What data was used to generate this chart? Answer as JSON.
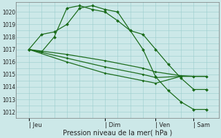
{
  "bg_color": "#cce8e8",
  "grid_color": "#99cccc",
  "line_color": "#1a6b1a",
  "ylabel_values": [
    1012,
    1013,
    1014,
    1015,
    1016,
    1017,
    1018,
    1019,
    1020
  ],
  "ylim": [
    1011.5,
    1020.8
  ],
  "xlabel": "Pression niveau de la mer( hPa )",
  "xtick_labels": [
    "| Jeu",
    "| Dim",
    "| Ven",
    "| Sam"
  ],
  "xtick_positions": [
    0,
    3,
    5,
    6.5
  ],
  "xlim": [
    -0.1,
    7.5
  ],
  "series1_x": [
    0,
    0.5,
    1.0,
    1.5,
    2.0,
    2.5,
    3.0,
    3.5,
    4.0,
    4.5,
    5.0,
    5.5,
    6.0,
    6.5,
    7.0
  ],
  "series1_y": [
    1017.0,
    1018.2,
    1018.4,
    1019.0,
    1020.3,
    1020.5,
    1020.2,
    1020.0,
    1018.5,
    1018.2,
    1017.0,
    1015.8,
    1014.7,
    1013.8,
    1013.8
  ],
  "series2_x": [
    0,
    0.5,
    1.0,
    1.5,
    2.0,
    2.5,
    3.0,
    3.5,
    4.0,
    4.5,
    5.0,
    5.5,
    6.0,
    6.5,
    7.0
  ],
  "series2_y": [
    1017.0,
    1016.8,
    1018.0,
    1020.3,
    1020.5,
    1020.2,
    1020.0,
    1019.3,
    1018.5,
    1017.0,
    1014.8,
    1013.7,
    1012.8,
    1012.2,
    1012.2
  ],
  "series3_x": [
    0,
    1.5,
    3.0,
    4.5,
    5.0,
    6.0,
    6.5,
    7.0
  ],
  "series3_y": [
    1017.0,
    1016.6,
    1016.1,
    1015.5,
    1015.2,
    1014.9,
    1014.85,
    1014.85
  ],
  "series4_x": [
    0,
    1.5,
    3.0,
    4.5,
    5.0,
    6.0,
    6.5,
    7.0
  ],
  "series4_y": [
    1017.0,
    1016.3,
    1015.6,
    1015.0,
    1014.75,
    1014.85,
    1014.85,
    1014.85
  ],
  "series5_x": [
    0,
    1.5,
    3.0,
    4.5,
    5.0,
    6.0,
    6.5,
    7.0
  ],
  "series5_y": [
    1017.0,
    1016.0,
    1015.1,
    1014.5,
    1014.3,
    1014.85,
    1014.85,
    1014.85
  ],
  "vline_positions": [
    0,
    3,
    5,
    6.5
  ]
}
